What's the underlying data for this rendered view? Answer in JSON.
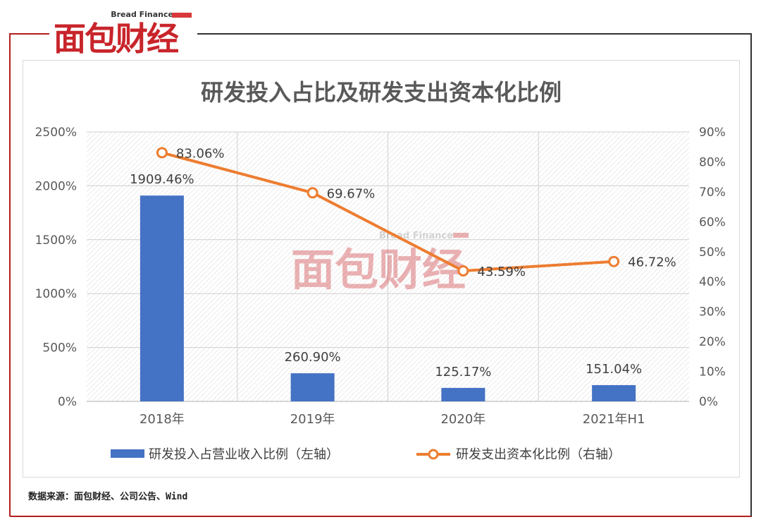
{
  "brand": {
    "logo_text_cn": "面包财经",
    "logo_text_en": "Bread Finance",
    "accent": "#c8252b",
    "frame_color": "#b21e1e"
  },
  "watermark": {
    "text_cn": "面包财经",
    "text_en": "Bread Finance"
  },
  "source_note": "数据来源：面包财经、公司公告、Wind",
  "chart_data": {
    "type": "bar",
    "title": "研发投入占比及研发支出资本化比例",
    "categories": [
      "2018年",
      "2019年",
      "2020年",
      "2021年H1"
    ],
    "series": [
      {
        "name": "研发投入占营业收入比例（左轴）",
        "type": "bar",
        "axis": "left",
        "color": "#4472c4",
        "values": [
          1909.46,
          260.9,
          125.17,
          151.04
        ],
        "labels": [
          "1909.46%",
          "260.90%",
          "125.17%",
          "151.04%"
        ]
      },
      {
        "name": "研发支出资本化比例（右轴）",
        "type": "line",
        "axis": "right",
        "color": "#ed7d31",
        "values": [
          83.06,
          69.67,
          43.59,
          46.72
        ],
        "labels": [
          "83.06%",
          "69.67%",
          "43.59%",
          "46.72%"
        ]
      }
    ],
    "y_left": {
      "min": 0,
      "max": 2500,
      "step": 500,
      "ticks": [
        "0%",
        "500%",
        "1000%",
        "1500%",
        "2000%",
        "2500%"
      ]
    },
    "y_right": {
      "min": 0,
      "max": 90,
      "step": 10,
      "ticks": [
        "0%",
        "10%",
        "20%",
        "30%",
        "40%",
        "50%",
        "60%",
        "70%",
        "80%",
        "90%"
      ]
    },
    "grid": true,
    "legend_position": "bottom"
  }
}
